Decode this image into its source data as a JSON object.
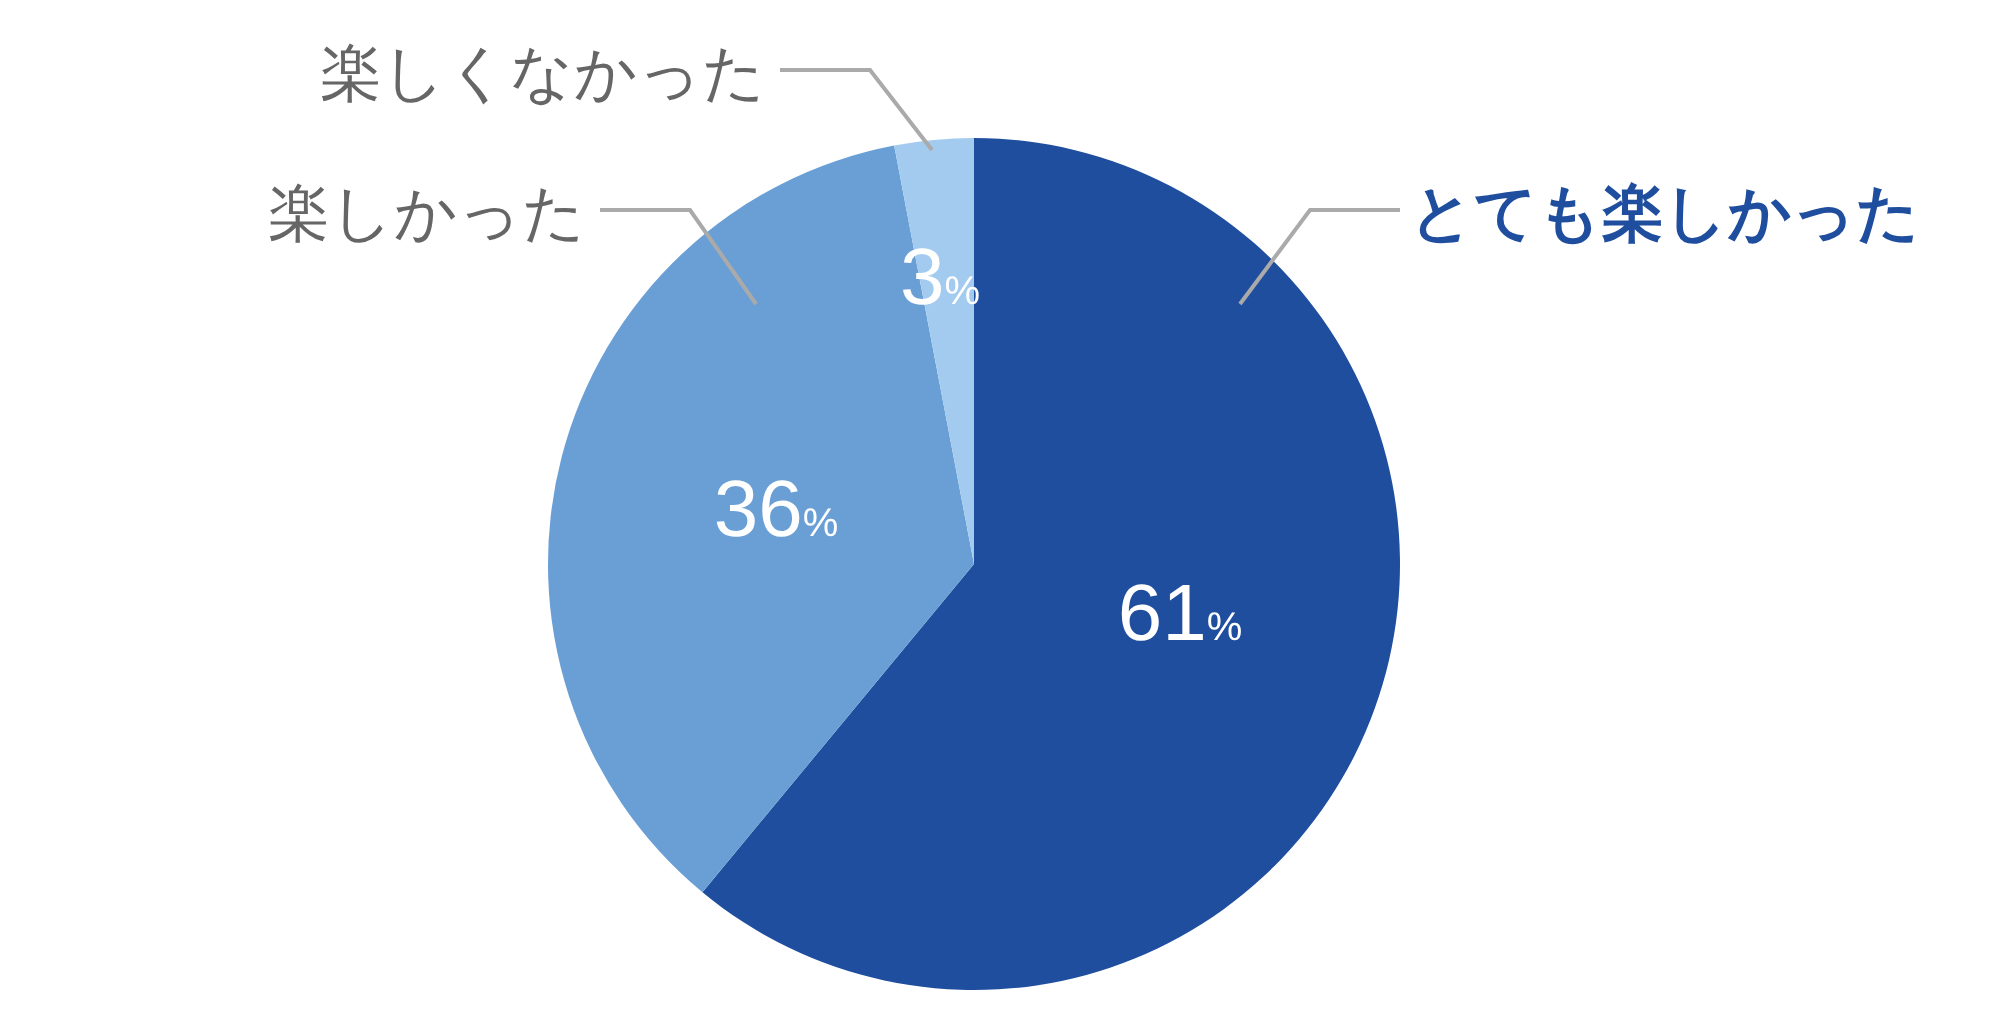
{
  "chart_data": {
    "type": "pie",
    "categories": [
      "とても楽しかった",
      "楽しかった",
      "楽しくなかった"
    ],
    "values": [
      61,
      36,
      3
    ],
    "colors": [
      "#1f4e9f",
      "#6a9fd6",
      "#a3cbef"
    ],
    "value_labels": [
      "61%",
      "36%",
      "3%"
    ]
  }
}
